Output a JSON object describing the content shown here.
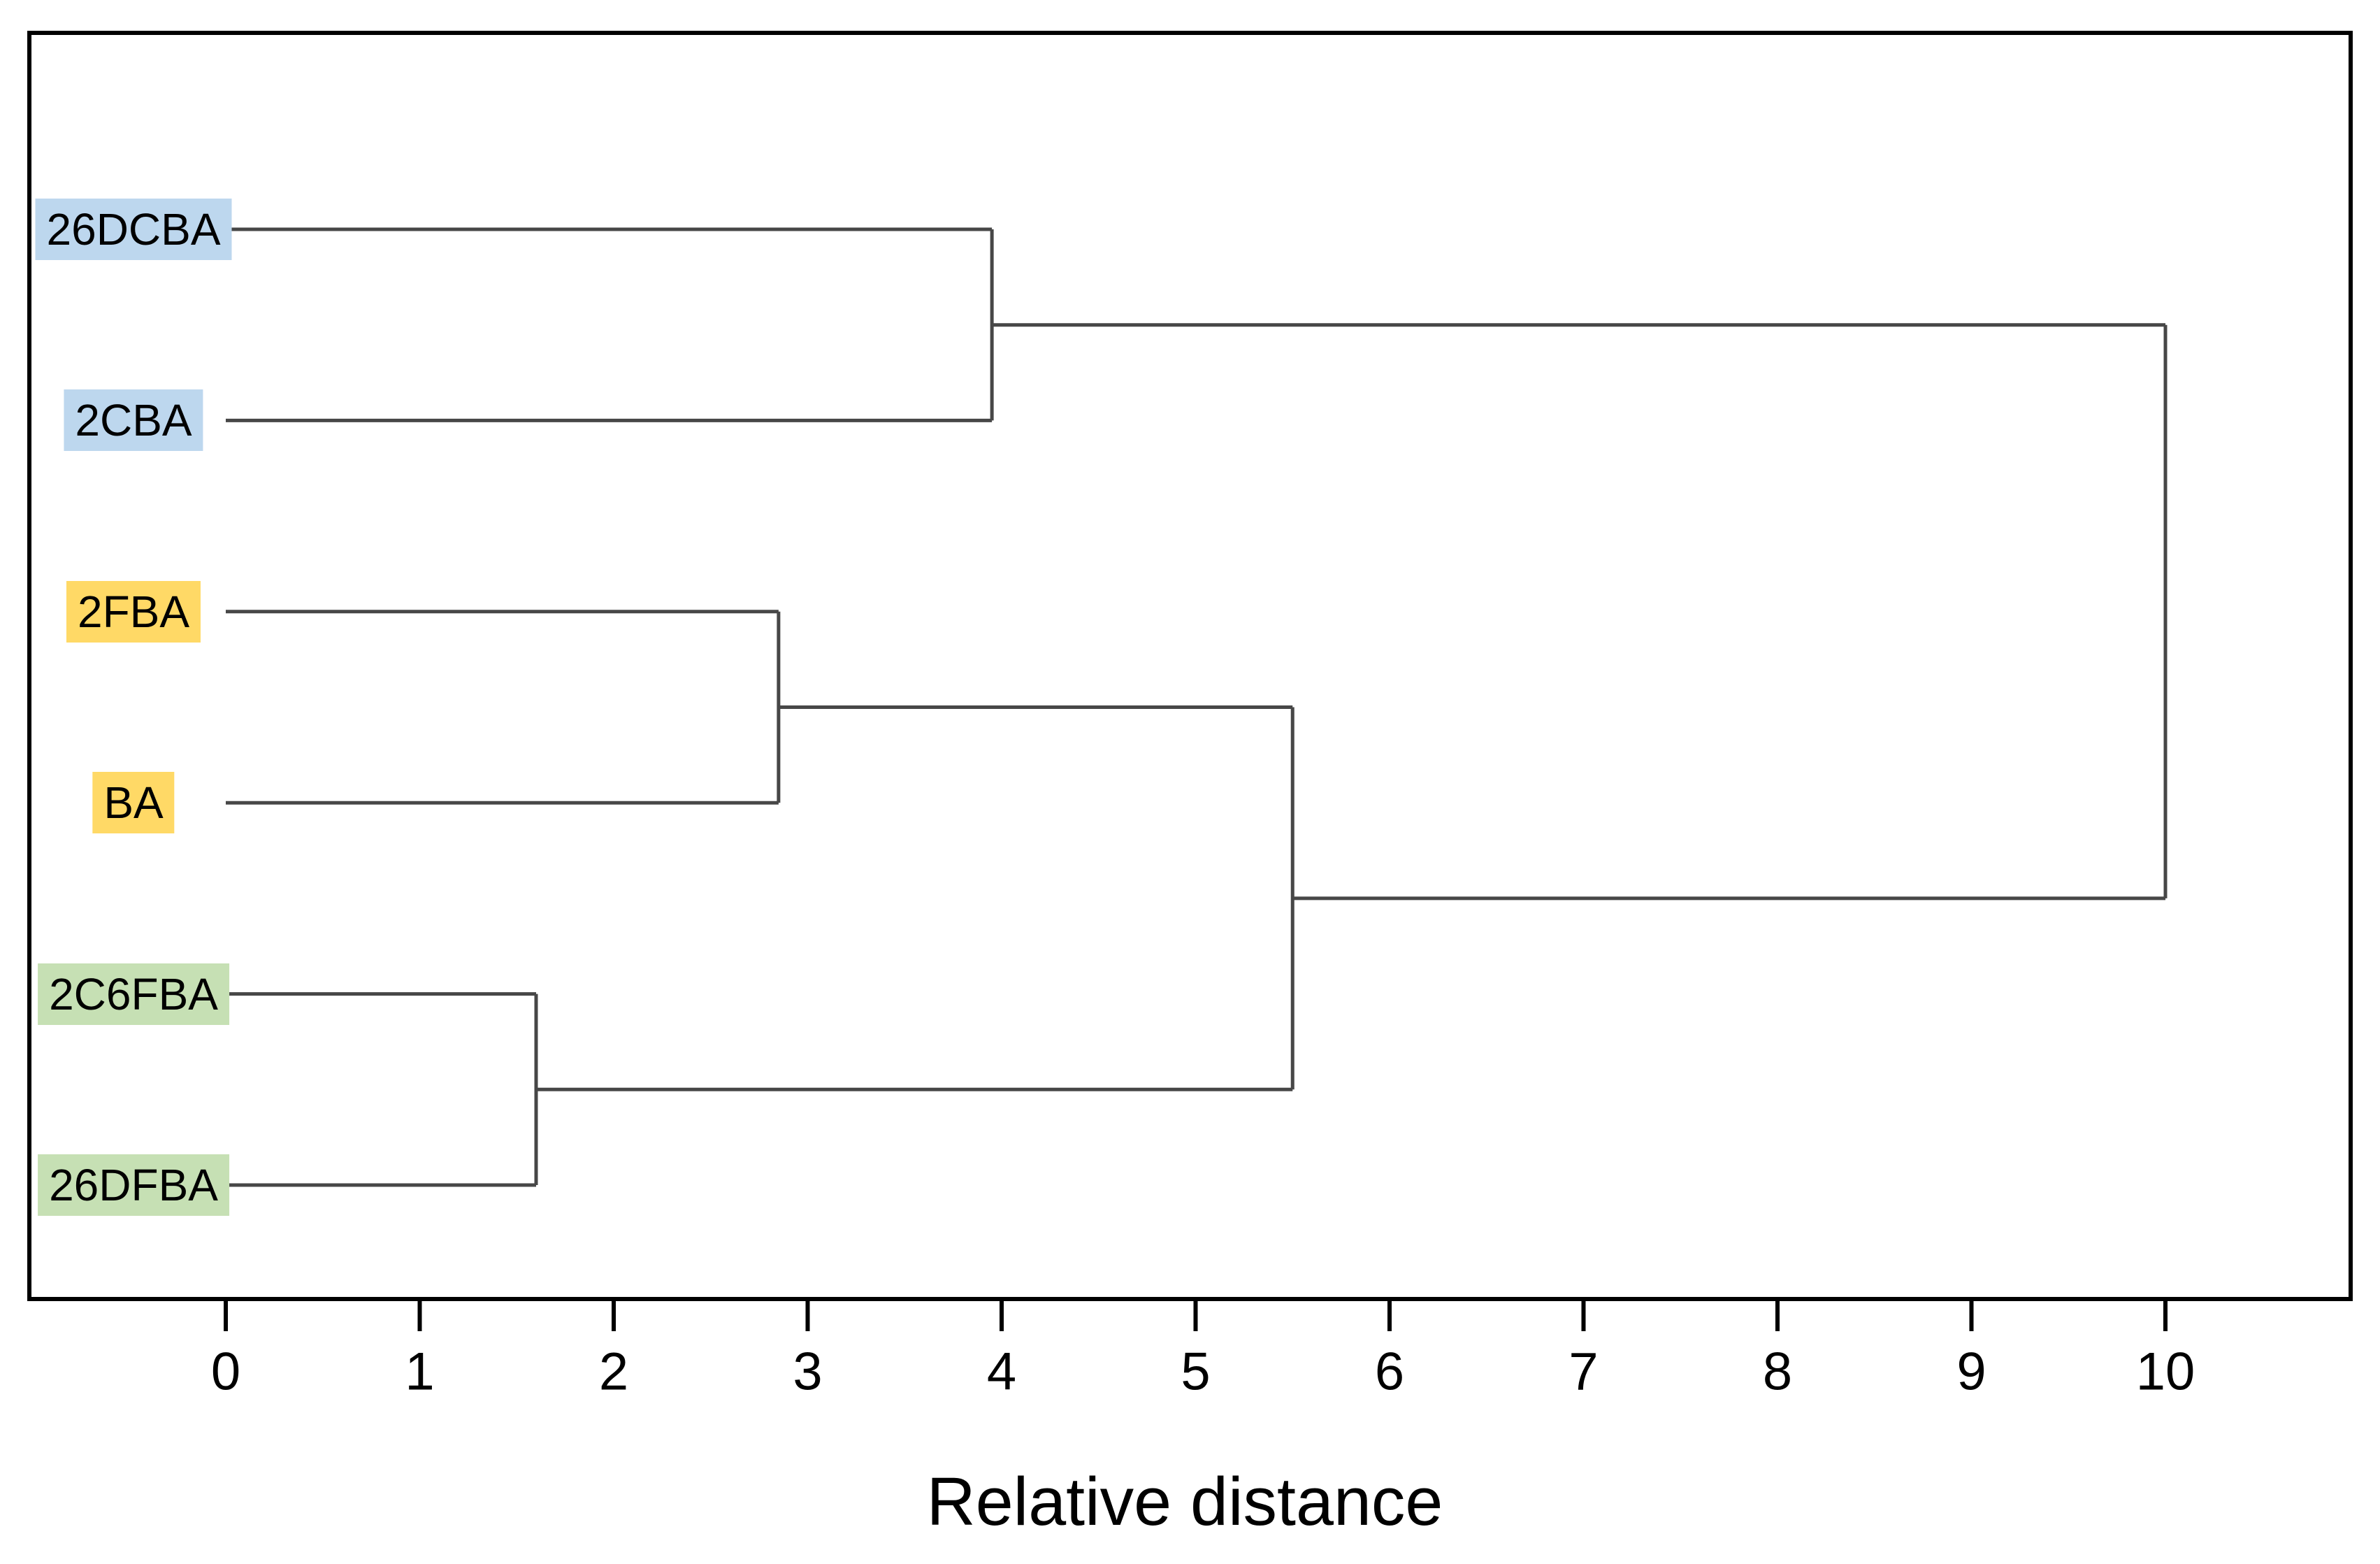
{
  "chart_data": {
    "type": "dendrogram",
    "orientation": "horizontal",
    "title": "",
    "xlabel": "Relative distance",
    "ylabel": "",
    "xlim": [
      -1,
      11
    ],
    "x_ticks": [
      0,
      1,
      2,
      3,
      4,
      5,
      6,
      7,
      8,
      9,
      10
    ],
    "grid": false,
    "legend": null,
    "leaves": [
      {
        "label": "26DCBA",
        "highlight_color": "#BDD7EE",
        "color_group": "blue"
      },
      {
        "label": "2CBA",
        "highlight_color": "#BDD7EE",
        "color_group": "blue"
      },
      {
        "label": "2FBA",
        "highlight_color": "#FFD966",
        "color_group": "yellow"
      },
      {
        "label": "BA",
        "highlight_color": "#FFD966",
        "color_group": "yellow"
      },
      {
        "label": "2C6FBA",
        "highlight_color": "#C6E0B4",
        "color_group": "green"
      },
      {
        "label": "26DFBA",
        "highlight_color": "#C6E0B4",
        "color_group": "green"
      }
    ],
    "merges": [
      {
        "id": "M0",
        "children": [
          "L0",
          "L1"
        ],
        "distance": 3.95
      },
      {
        "id": "M1",
        "children": [
          "L2",
          "L3"
        ],
        "distance": 2.85
      },
      {
        "id": "M2",
        "children": [
          "L4",
          "L5"
        ],
        "distance": 1.6
      },
      {
        "id": "M3",
        "children": [
          "M1",
          "M2"
        ],
        "distance": 5.5
      },
      {
        "id": "M4",
        "children": [
          "M0",
          "M3"
        ],
        "distance": 10.0
      }
    ],
    "colors": {
      "link_line": "#474747",
      "frame": "#000000",
      "tick": "#000000",
      "text": "#000000",
      "background": "#ffffff"
    }
  }
}
